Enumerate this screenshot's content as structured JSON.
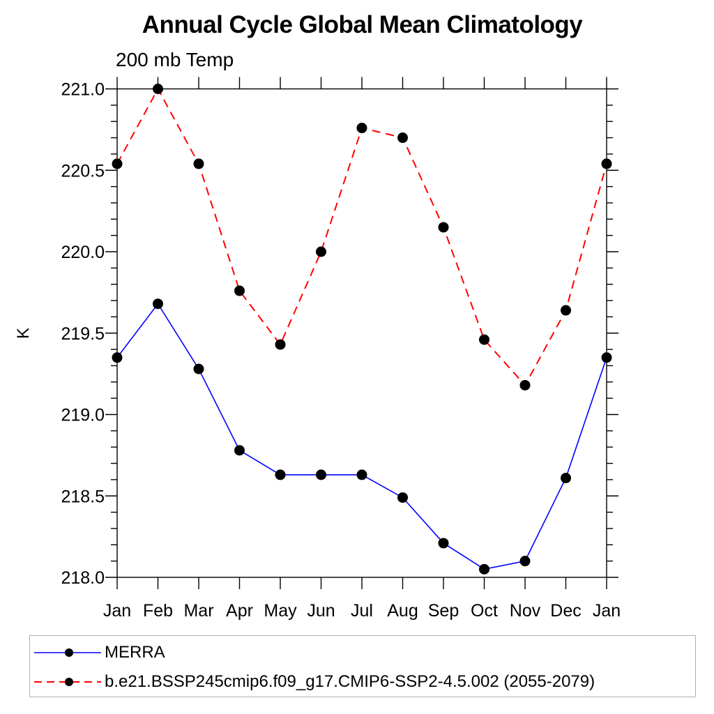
{
  "chart_data": {
    "type": "line",
    "title": "Annual Cycle Global Mean Climatology",
    "subtitle": "200 mb Temp",
    "ylabel": "K",
    "xlabel": "",
    "categories": [
      "Jan",
      "Feb",
      "Mar",
      "Apr",
      "May",
      "Jun",
      "Jul",
      "Aug",
      "Sep",
      "Oct",
      "Nov",
      "Dec",
      "Jan"
    ],
    "ylim": [
      218.0,
      221.0
    ],
    "ytick_major_interval": 0.5,
    "ytick_minor_interval": 0.1,
    "ytick_labels": [
      "218.0",
      "218.5",
      "219.0",
      "219.5",
      "220.0",
      "220.5",
      "221.0"
    ],
    "grid": false,
    "legend_position": "bottom",
    "series": [
      {
        "name": "MERRA",
        "line_color": "#0000ff",
        "line_style": "solid",
        "marker": "filled-circle",
        "marker_color": "#000000",
        "values": [
          219.35,
          219.68,
          219.28,
          218.78,
          218.63,
          218.63,
          218.63,
          218.49,
          218.21,
          218.05,
          218.1,
          218.61,
          219.35
        ]
      },
      {
        "name": "b.e21.BSSP245cmip6.f09_g17.CMIP6-SSP2-4.5.002 (2055-2079)",
        "line_color": "#ff0000",
        "line_style": "dashed",
        "marker": "filled-circle",
        "marker_color": "#000000",
        "values": [
          220.54,
          221.0,
          220.54,
          219.76,
          219.43,
          220.0,
          220.76,
          220.7,
          220.15,
          219.46,
          219.18,
          219.64,
          220.54
        ]
      }
    ]
  }
}
